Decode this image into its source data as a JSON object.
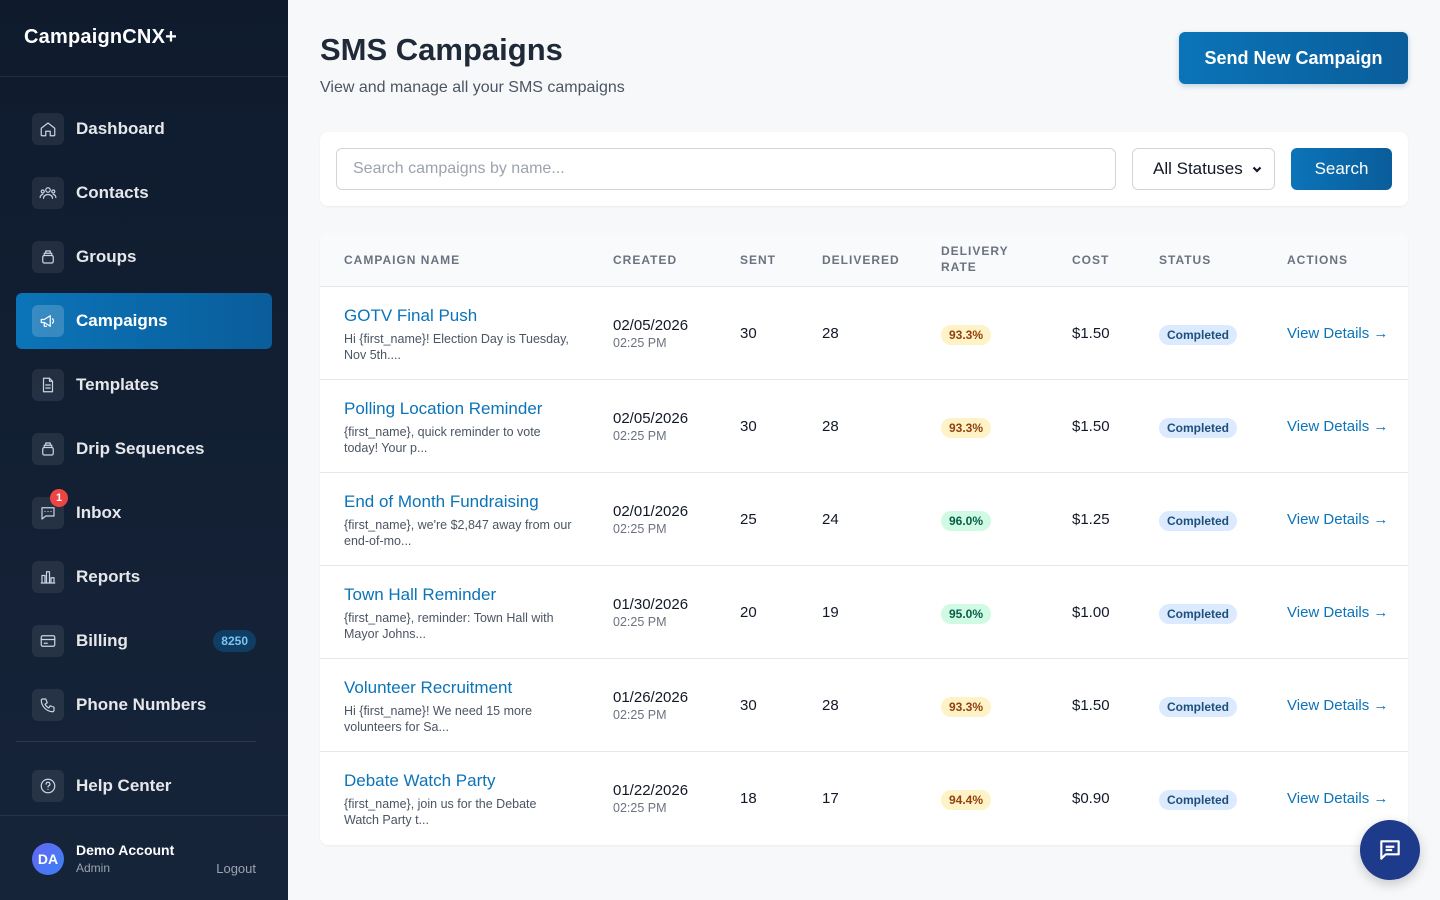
{
  "app": {
    "brand": "CampaignCNX+"
  },
  "sidebar": {
    "items": [
      {
        "label": "Dashboard",
        "icon": "home-icon"
      },
      {
        "label": "Contacts",
        "icon": "users-icon"
      },
      {
        "label": "Groups",
        "icon": "layers-icon"
      },
      {
        "label": "Campaigns",
        "icon": "megaphone-icon",
        "active": true
      },
      {
        "label": "Templates",
        "icon": "document-icon"
      },
      {
        "label": "Drip Sequences",
        "icon": "layers-icon"
      },
      {
        "label": "Inbox",
        "icon": "chat-bubble-icon",
        "badge": "1"
      },
      {
        "label": "Reports",
        "icon": "bar-chart-icon"
      },
      {
        "label": "Billing",
        "icon": "credit-card-icon",
        "credits": "8250"
      },
      {
        "label": "Phone Numbers",
        "icon": "phone-icon"
      }
    ],
    "help": {
      "label": "Help Center",
      "icon": "help-circle-icon"
    },
    "account": {
      "initials": "DA",
      "name": "Demo Account",
      "role": "Admin",
      "logout": "Logout"
    }
  },
  "header": {
    "title": "SMS Campaigns",
    "subtitle": "View and manage all your SMS campaigns",
    "new_button": "Send New Campaign"
  },
  "search": {
    "placeholder": "Search campaigns by name...",
    "value": "",
    "status_selected": "All Statuses",
    "button": "Search"
  },
  "table": {
    "columns": {
      "name": "Campaign Name",
      "created": "Created",
      "sent": "Sent",
      "delivered": "Delivered",
      "rate_line1": "Delivery",
      "rate_line2": "Rate",
      "cost": "Cost",
      "status": "Status",
      "actions": "Actions"
    },
    "rows": [
      {
        "name": "GOTV Final Push",
        "preview": "Hi {first_name}! Election Day is Tuesday, Nov 5th....",
        "date": "02/05/2026",
        "time": "02:25 PM",
        "sent": "30",
        "delivered": "28",
        "rate": "93.3%",
        "rate_level": "yellow",
        "cost": "$1.50",
        "status": "Completed",
        "action": "View Details →"
      },
      {
        "name": "Polling Location Reminder",
        "preview": "{first_name}, quick reminder to vote today! Your p...",
        "date": "02/05/2026",
        "time": "02:25 PM",
        "sent": "30",
        "delivered": "28",
        "rate": "93.3%",
        "rate_level": "yellow",
        "cost": "$1.50",
        "status": "Completed",
        "action": "View Details →"
      },
      {
        "name": "End of Month Fundraising",
        "preview": "{first_name}, we're $2,847 away from our end-of-mo...",
        "date": "02/01/2026",
        "time": "02:25 PM",
        "sent": "25",
        "delivered": "24",
        "rate": "96.0%",
        "rate_level": "green",
        "cost": "$1.25",
        "status": "Completed",
        "action": "View Details →"
      },
      {
        "name": "Town Hall Reminder",
        "preview": "{first_name}, reminder: Town Hall with Mayor Johns...",
        "date": "01/30/2026",
        "time": "02:25 PM",
        "sent": "20",
        "delivered": "19",
        "rate": "95.0%",
        "rate_level": "green",
        "cost": "$1.00",
        "status": "Completed",
        "action": "View Details →"
      },
      {
        "name": "Volunteer Recruitment",
        "preview": "Hi {first_name}! We need 15 more volunteers for Sa...",
        "date": "01/26/2026",
        "time": "02:25 PM",
        "sent": "30",
        "delivered": "28",
        "rate": "93.3%",
        "rate_level": "yellow",
        "cost": "$1.50",
        "status": "Completed",
        "action": "View Details →"
      },
      {
        "name": "Debate Watch Party",
        "preview": "{first_name}, join us for the Debate Watch Party t...",
        "date": "01/22/2026",
        "time": "02:25 PM",
        "sent": "18",
        "delivered": "17",
        "rate": "94.4%",
        "rate_level": "yellow",
        "cost": "$0.90",
        "status": "Completed",
        "action": "View Details →"
      }
    ]
  },
  "chat": {
    "icon": "chat-icon"
  },
  "colors": {
    "accent": "#0b74b8",
    "sidebar": "#0f1b2d",
    "danger": "#ef4444"
  }
}
